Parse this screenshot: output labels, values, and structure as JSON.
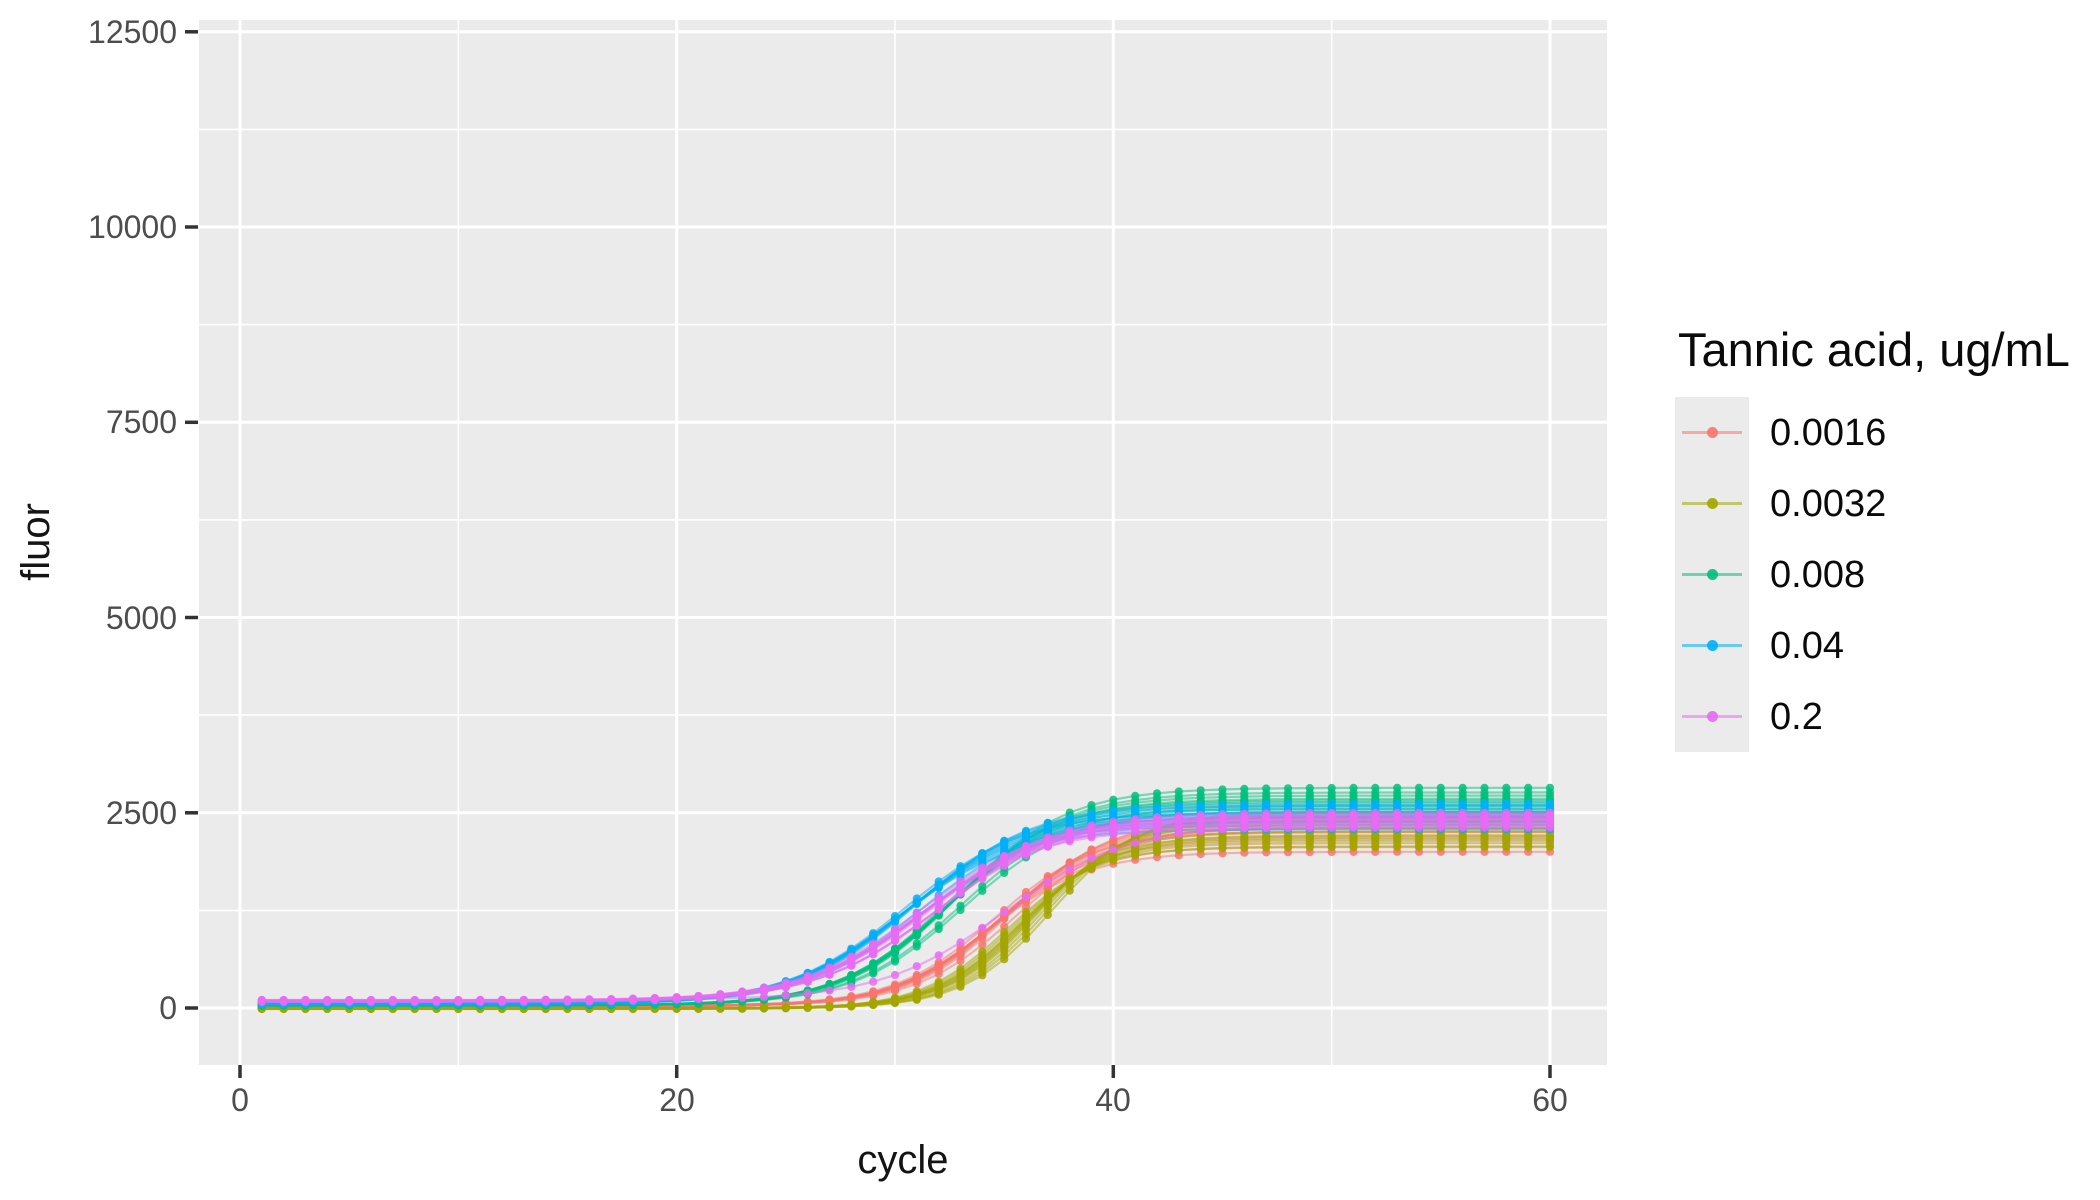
{
  "chart_data": {
    "type": "line",
    "title": "",
    "xlabel": "cycle",
    "ylabel": "fluor",
    "legend_title": "Tannic acid, ug/mL",
    "legend_position": "right",
    "grid": true,
    "panel_background": "#EBEBEB",
    "gridline_color": "#FFFFFF",
    "axis_tick_color": "#333333",
    "tick_label_color": "#4D4D4D",
    "x_ticks": [
      0,
      20,
      40,
      60
    ],
    "x_tick_labels": [
      "0",
      "20",
      "40",
      "60"
    ],
    "x_minor_ticks": [
      10,
      30,
      50
    ],
    "y_ticks": [
      12500,
      10000,
      7500,
      5000,
      2500,
      0
    ],
    "y_tick_labels": [
      "12500",
      "10000",
      "7500",
      "5000",
      "2500",
      "0"
    ],
    "y_minor_ticks": [
      11250,
      8750,
      6250,
      3750,
      1250
    ],
    "xlim": [
      -1.9,
      62.6
    ],
    "ylim": [
      -730,
      12650
    ],
    "cycle_range": [
      1,
      60
    ],
    "sampled_cycles": [
      1,
      10,
      20,
      25,
      30,
      35,
      40,
      45,
      50,
      55,
      60
    ],
    "series": [
      {
        "name": "0.0016",
        "color": "#F8766D",
        "baseline": 25,
        "midpoint": 34.9,
        "slope": 2.3,
        "mean_values_by_cycle": [
          25,
          25,
          27,
          40,
          265,
          1180,
          2120,
          2270,
          2295,
          2300,
          2300
        ],
        "replicates": {
          "plateaus": [
            2000,
            2070,
            2140,
            2200,
            2250,
            2300,
            2340,
            2380,
            2410,
            2440,
            2310,
            2260
          ],
          "midpoint_offsets": [
            -0.6,
            -0.45,
            -0.3,
            -0.2,
            -0.1,
            0,
            0.1,
            0.2,
            0.3,
            0.45,
            0.6,
            -0.35
          ],
          "baseline_offsets": [
            -6,
            -4,
            -2,
            0,
            2,
            4,
            6,
            -3,
            3,
            -1,
            1,
            5
          ]
        }
      },
      {
        "name": "0.0032",
        "color": "#A3A500",
        "baseline": -5,
        "midpoint": 36.2,
        "slope": 2.0,
        "mean_values_by_cycle": [
          -5,
          -5,
          -4,
          0,
          95,
          900,
          2040,
          2320,
          2350,
          2353,
          2355
        ],
        "replicates": {
          "plateaus": [
            2060,
            2110,
            2160,
            2210,
            2260,
            2310,
            2360,
            2400,
            2440,
            2480,
            2510,
            2180
          ],
          "midpoint_offsets": [
            -1.0,
            -0.75,
            -0.5,
            -0.3,
            -0.15,
            0,
            0.15,
            0.3,
            0.5,
            0.75,
            1.0,
            -0.4
          ],
          "baseline_offsets": [
            -8,
            -5,
            -3,
            -1,
            0,
            1,
            3,
            5,
            -6,
            -2,
            2,
            4
          ]
        }
      },
      {
        "name": "0.008",
        "color": "#00BF7D",
        "baseline": 35,
        "midpoint": 32.6,
        "slope": 2.5,
        "mean_values_by_cycle": [
          35,
          35,
          50,
          140,
          715,
          1970,
          2520,
          2625,
          2638,
          2640,
          2640
        ],
        "replicates": {
          "plateaus": [
            2450,
            2500,
            2550,
            2600,
            2640,
            2680,
            2720,
            2760,
            2820,
            2580,
            2520,
            2660
          ],
          "midpoint_offsets": [
            -0.5,
            -0.38,
            -0.25,
            -0.15,
            -0.05,
            0,
            0.08,
            0.18,
            0.28,
            0.4,
            0.5,
            -0.2
          ],
          "baseline_offsets": [
            -5,
            -3,
            -1,
            0,
            1,
            3,
            5,
            -4,
            -2,
            2,
            4,
            0
          ]
        }
      },
      {
        "name": "0.04",
        "color": "#00B0F6",
        "baseline": 55,
        "midpoint": 30.7,
        "slope": 2.7,
        "mean_values_by_cycle": [
          55,
          56,
          90,
          310,
          1105,
          2075,
          2395,
          2460,
          2468,
          2470,
          2470
        ],
        "replicates": {
          "plateaus": [
            2290,
            2340,
            2390,
            2430,
            2470,
            2510,
            2550,
            2590,
            2620,
            2450,
            2380,
            2500
          ],
          "midpoint_offsets": [
            -0.55,
            -0.42,
            -0.3,
            -0.2,
            -0.1,
            0,
            0.1,
            0.2,
            0.32,
            0.45,
            0.55,
            -0.25
          ],
          "baseline_offsets": [
            -6,
            -4,
            -2,
            0,
            2,
            4,
            6,
            -5,
            -3,
            3,
            5,
            1
          ]
        }
      },
      {
        "name": "0.2",
        "color": "#E76BF3",
        "baseline": 90,
        "midpoint": 31.6,
        "slope": 2.8,
        "mean_values_by_cycle": [
          90,
          91,
          125,
          330,
          935,
          1830,
          2290,
          2410,
          2428,
          2430,
          2430
        ],
        "replicates": {
          "plateaus": [
            2310,
            2350,
            2390,
            2420,
            2460,
            2500,
            2380,
            2430,
            2470,
            2350,
            2420,
            2440
          ],
          "midpoint_offsets": [
            -0.5,
            -0.35,
            -0.22,
            -0.1,
            0,
            0.1,
            0.22,
            0.35,
            0.5,
            3.4,
            -0.42,
            0.05
          ],
          "baseline_offsets": [
            -8,
            -4,
            0,
            4,
            8,
            12,
            -12,
            -6,
            6,
            10,
            2,
            -2
          ]
        }
      }
    ]
  }
}
